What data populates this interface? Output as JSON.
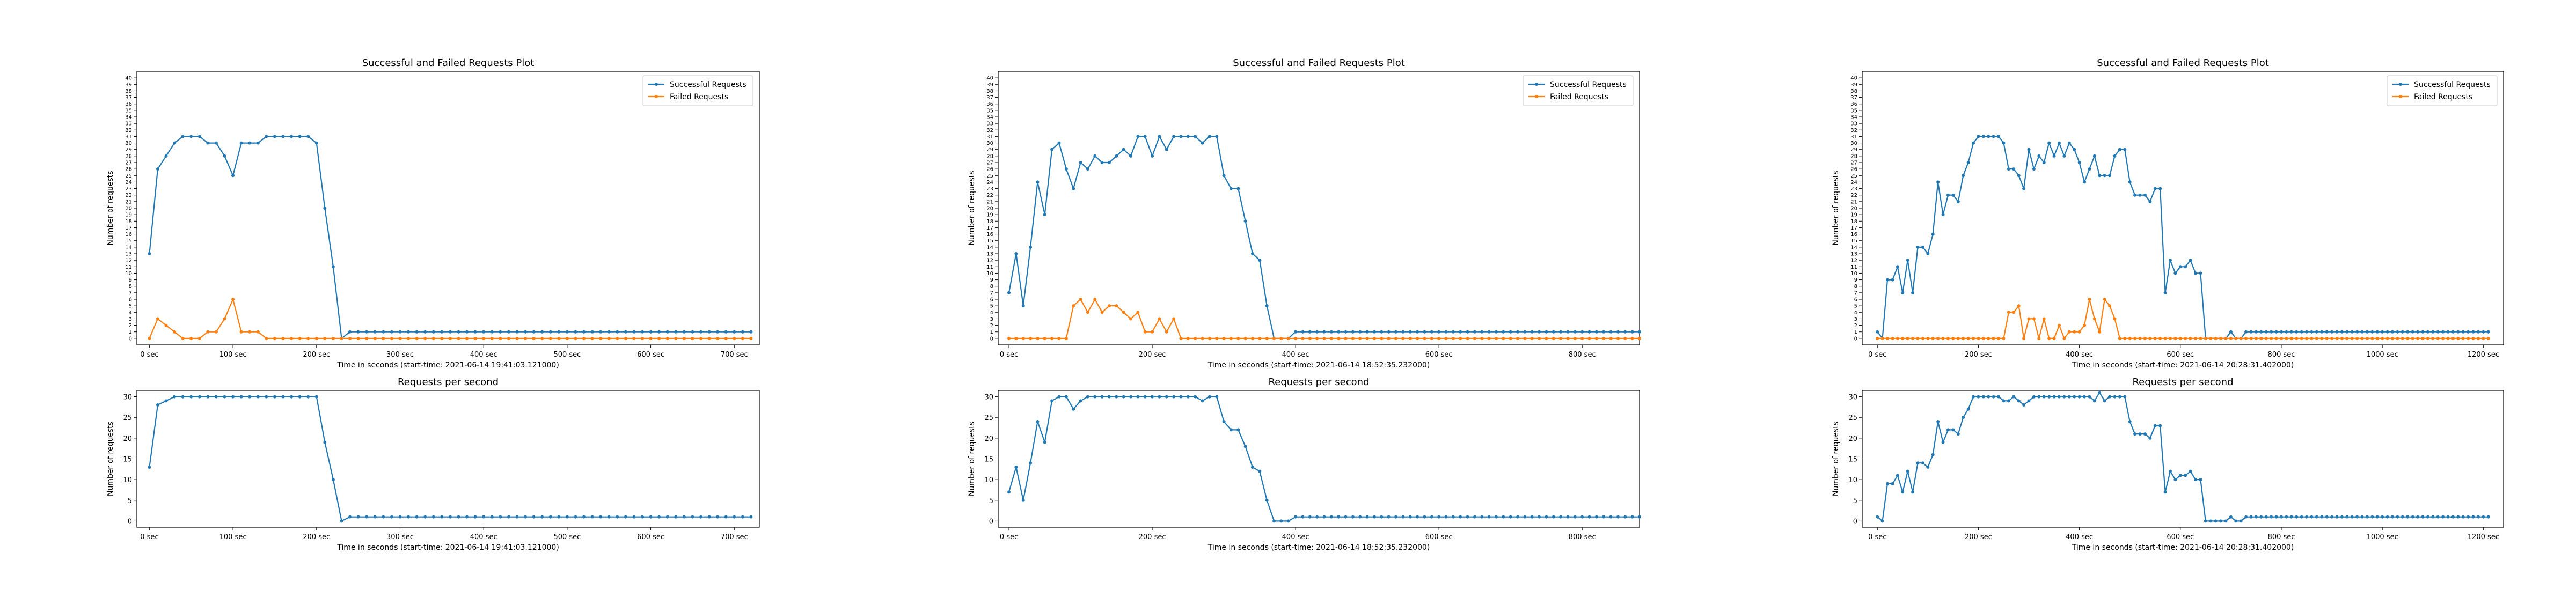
{
  "colors": {
    "success": "#1f77b4",
    "failed": "#ff7f0e",
    "frame": "#000000",
    "background": "#ffffff"
  },
  "chart_data": [
    {
      "type": "line",
      "title": "Successful and Failed Requests Plot",
      "xlabel": "Time in seconds (start-time: 2021-06-14 19:41:03.121000)",
      "ylabel": "Number of requests",
      "xlim": [
        -15,
        730
      ],
      "ylim": [
        -1,
        41
      ],
      "yticks": [
        0,
        1,
        2,
        3,
        4,
        5,
        6,
        7,
        8,
        9,
        10,
        11,
        12,
        13,
        14,
        15,
        16,
        17,
        18,
        19,
        20,
        21,
        22,
        23,
        24,
        25,
        26,
        27,
        28,
        29,
        30,
        31,
        32,
        33,
        34,
        35,
        36,
        37,
        38,
        39,
        40
      ],
      "xticks": [
        0,
        100,
        200,
        300,
        400,
        500,
        600,
        700
      ],
      "xtick_labels": [
        "0 sec",
        "100 sec",
        "200 sec",
        "300 sec",
        "400 sec",
        "500 sec",
        "600 sec",
        "700 sec"
      ],
      "legend": [
        "Successful Requests",
        "Failed Requests"
      ],
      "legend_position": "top-right",
      "series": [
        {
          "name": "Successful Requests",
          "x_step": 10,
          "values": [
            13,
            26,
            28,
            30,
            31,
            31,
            31,
            30,
            30,
            28,
            25,
            30,
            30,
            30,
            31,
            31,
            31,
            31,
            31,
            31,
            30,
            20,
            11,
            0,
            1,
            1,
            1,
            1,
            1,
            1,
            1,
            1,
            1,
            1,
            1,
            1,
            1,
            1,
            1,
            1,
            1,
            1,
            1,
            1,
            1,
            1,
            1,
            1,
            1,
            1,
            1,
            1,
            1,
            1,
            1,
            1,
            1,
            1,
            1,
            1,
            1,
            1,
            1,
            1,
            1,
            1,
            1,
            1,
            1,
            1,
            1,
            1,
            1
          ]
        },
        {
          "name": "Failed Requests",
          "x_step": 10,
          "values": [
            0,
            3,
            2,
            1,
            0,
            0,
            0,
            1,
            1,
            3,
            6,
            1,
            1,
            1,
            0,
            0,
            0,
            0,
            0,
            0,
            0,
            0,
            0,
            0,
            0,
            0,
            0,
            0,
            0,
            0,
            0,
            0,
            0,
            0,
            0,
            0,
            0,
            0,
            0,
            0,
            0,
            0,
            0,
            0,
            0,
            0,
            0,
            0,
            0,
            0,
            0,
            0,
            0,
            0,
            0,
            0,
            0,
            0,
            0,
            0,
            0,
            0,
            0,
            0,
            0,
            0,
            0,
            0,
            0,
            0,
            0,
            0,
            0
          ]
        }
      ]
    },
    {
      "type": "line",
      "title": "Requests per second",
      "xlabel": "Time in seconds (start-time: 2021-06-14 19:41:03.121000)",
      "ylabel": "Number of requests",
      "xlim": [
        -15,
        730
      ],
      "ylim": [
        -1.5,
        31.5
      ],
      "yticks": [
        0,
        5,
        10,
        15,
        20,
        25,
        30
      ],
      "xticks": [
        0,
        100,
        200,
        300,
        400,
        500,
        600,
        700
      ],
      "xtick_labels": [
        "0 sec",
        "100 sec",
        "200 sec",
        "300 sec",
        "400 sec",
        "500 sec",
        "600 sec",
        "700 sec"
      ],
      "series": [
        {
          "name": "Requests per second",
          "x_step": 10,
          "values": [
            13,
            28,
            29,
            30,
            30,
            30,
            30,
            30,
            30,
            30,
            30,
            30,
            30,
            30,
            30,
            30,
            30,
            30,
            30,
            30,
            30,
            19,
            10,
            0,
            1,
            1,
            1,
            1,
            1,
            1,
            1,
            1,
            1,
            1,
            1,
            1,
            1,
            1,
            1,
            1,
            1,
            1,
            1,
            1,
            1,
            1,
            1,
            1,
            1,
            1,
            1,
            1,
            1,
            1,
            1,
            1,
            1,
            1,
            1,
            1,
            1,
            1,
            1,
            1,
            1,
            1,
            1,
            1,
            1,
            1,
            1,
            1,
            1
          ]
        }
      ]
    },
    {
      "type": "line",
      "title": "Successful and Failed Requests Plot",
      "xlabel": "Time in seconds (start-time: 2021-06-14 18:52:35.232000)",
      "ylabel": "Number of requests",
      "xlim": [
        -15,
        880
      ],
      "ylim": [
        -1,
        41
      ],
      "yticks": [
        0,
        1,
        2,
        3,
        4,
        5,
        6,
        7,
        8,
        9,
        10,
        11,
        12,
        13,
        14,
        15,
        16,
        17,
        18,
        19,
        20,
        21,
        22,
        23,
        24,
        25,
        26,
        27,
        28,
        29,
        30,
        31,
        32,
        33,
        34,
        35,
        36,
        37,
        38,
        39,
        40
      ],
      "xticks": [
        0,
        200,
        400,
        600,
        800
      ],
      "xtick_labels": [
        "0 sec",
        "200 sec",
        "400 sec",
        "600 sec",
        "800 sec"
      ],
      "legend": [
        "Successful Requests",
        "Failed Requests"
      ],
      "legend_position": "top-right",
      "series": [
        {
          "name": "Successful Requests",
          "x_step": 10,
          "values": [
            7,
            13,
            5,
            14,
            24,
            19,
            29,
            30,
            26,
            23,
            27,
            26,
            28,
            27,
            27,
            28,
            29,
            28,
            31,
            31,
            28,
            31,
            29,
            31,
            31,
            31,
            31,
            30,
            31,
            31,
            25,
            23,
            23,
            18,
            13,
            12,
            5,
            0,
            0,
            0,
            1,
            1,
            1,
            1,
            1,
            1,
            1,
            1,
            1,
            1,
            1,
            1,
            1,
            1,
            1,
            1,
            1,
            1,
            1,
            1,
            1,
            1,
            1,
            1,
            1,
            1,
            1,
            1,
            1,
            1,
            1,
            1,
            1,
            1,
            1,
            1,
            1,
            1,
            1,
            1,
            1,
            1,
            1,
            1,
            1,
            1,
            1,
            1,
            1
          ]
        },
        {
          "name": "Failed Requests",
          "x_step": 10,
          "values": [
            0,
            0,
            0,
            0,
            0,
            0,
            0,
            0,
            0,
            5,
            6,
            4,
            6,
            4,
            5,
            5,
            4,
            3,
            4,
            1,
            1,
            3,
            1,
            3,
            0,
            0,
            0,
            0,
            0,
            0,
            0,
            0,
            0,
            0,
            0,
            0,
            0,
            0,
            0,
            0,
            0,
            0,
            0,
            0,
            0,
            0,
            0,
            0,
            0,
            0,
            0,
            0,
            0,
            0,
            0,
            0,
            0,
            0,
            0,
            0,
            0,
            0,
            0,
            0,
            0,
            0,
            0,
            0,
            0,
            0,
            0,
            0,
            0,
            0,
            0,
            0,
            0,
            0,
            0,
            0,
            0,
            0,
            0,
            0,
            0,
            0,
            0,
            0,
            0
          ]
        }
      ]
    },
    {
      "type": "line",
      "title": "Requests per second",
      "xlabel": "Time in seconds (start-time: 2021-06-14 18:52:35.232000)",
      "ylabel": "Number of requests",
      "xlim": [
        -15,
        880
      ],
      "ylim": [
        -1.5,
        31.5
      ],
      "yticks": [
        0,
        5,
        10,
        15,
        20,
        25,
        30
      ],
      "xticks": [
        0,
        200,
        400,
        600,
        800
      ],
      "xtick_labels": [
        "0 sec",
        "200 sec",
        "400 sec",
        "600 sec",
        "800 sec"
      ],
      "series": [
        {
          "name": "Requests per second",
          "x_step": 10,
          "values": [
            7,
            13,
            5,
            14,
            24,
            19,
            29,
            30,
            30,
            27,
            29,
            30,
            30,
            30,
            30,
            30,
            30,
            30,
            30,
            30,
            30,
            30,
            30,
            30,
            30,
            30,
            30,
            29,
            30,
            30,
            24,
            22,
            22,
            18,
            13,
            12,
            5,
            0,
            0,
            0,
            1,
            1,
            1,
            1,
            1,
            1,
            1,
            1,
            1,
            1,
            1,
            1,
            1,
            1,
            1,
            1,
            1,
            1,
            1,
            1,
            1,
            1,
            1,
            1,
            1,
            1,
            1,
            1,
            1,
            1,
            1,
            1,
            1,
            1,
            1,
            1,
            1,
            1,
            1,
            1,
            1,
            1,
            1,
            1,
            1,
            1,
            1,
            1,
            1
          ]
        }
      ]
    },
    {
      "type": "line",
      "title": "Successful and Failed Requests Plot",
      "xlabel": "Time in seconds (start-time: 2021-06-14 20:28:31.402000)",
      "ylabel": "Number of requests",
      "xlim": [
        -30,
        1240
      ],
      "ylim": [
        -1,
        41
      ],
      "yticks": [
        0,
        1,
        2,
        3,
        4,
        5,
        6,
        7,
        8,
        9,
        10,
        11,
        12,
        13,
        14,
        15,
        16,
        17,
        18,
        19,
        20,
        21,
        22,
        23,
        24,
        25,
        26,
        27,
        28,
        29,
        30,
        31,
        32,
        33,
        34,
        35,
        36,
        37,
        38,
        39,
        40
      ],
      "xticks": [
        0,
        200,
        400,
        600,
        800,
        1000,
        1200
      ],
      "xtick_labels": [
        "0 sec",
        "200 sec",
        "400 sec",
        "600 sec",
        "800 sec",
        "1000 sec",
        "1200 sec"
      ],
      "legend": [
        "Successful Requests",
        "Failed Requests"
      ],
      "legend_position": "top-right",
      "series": [
        {
          "name": "Successful Requests",
          "x_step": 10,
          "values": [
            1,
            0,
            9,
            9,
            11,
            7,
            12,
            7,
            14,
            14,
            13,
            16,
            24,
            19,
            22,
            22,
            21,
            25,
            27,
            30,
            31,
            31,
            31,
            31,
            31,
            30,
            26,
            26,
            25,
            23,
            29,
            26,
            28,
            27,
            30,
            28,
            30,
            28,
            30,
            29,
            27,
            24,
            26,
            28,
            25,
            25,
            25,
            28,
            29,
            29,
            24,
            22,
            22,
            22,
            21,
            23,
            23,
            7,
            12,
            10,
            11,
            11,
            12,
            10,
            10,
            0,
            0,
            0,
            0,
            0,
            1,
            0,
            0,
            1,
            1,
            1,
            1,
            1,
            1,
            1,
            1,
            1,
            1,
            1,
            1,
            1,
            1,
            1,
            1,
            1,
            1,
            1,
            1,
            1,
            1,
            1,
            1,
            1,
            1,
            1,
            1,
            1,
            1,
            1,
            1,
            1,
            1,
            1,
            1,
            1,
            1,
            1,
            1,
            1,
            1,
            1,
            1,
            1,
            1,
            1,
            1,
            1
          ]
        },
        {
          "name": "Failed Requests",
          "x_step": 10,
          "values": [
            0,
            0,
            0,
            0,
            0,
            0,
            0,
            0,
            0,
            0,
            0,
            0,
            0,
            0,
            0,
            0,
            0,
            0,
            0,
            0,
            0,
            0,
            0,
            0,
            0,
            0,
            4,
            4,
            5,
            0,
            3,
            3,
            0,
            3,
            0,
            0,
            2,
            0,
            1,
            1,
            1,
            2,
            6,
            3,
            1,
            6,
            5,
            3,
            0,
            0,
            0,
            0,
            0,
            0,
            0,
            0,
            0,
            0,
            0,
            0,
            0,
            0,
            0,
            0,
            0,
            0,
            0,
            0,
            0,
            0,
            0,
            0,
            0,
            0,
            0,
            0,
            0,
            0,
            0,
            0,
            0,
            0,
            0,
            0,
            0,
            0,
            0,
            0,
            0,
            0,
            0,
            0,
            0,
            0,
            0,
            0,
            0,
            0,
            0,
            0,
            0,
            0,
            0,
            0,
            0,
            0,
            0,
            0,
            0,
            0,
            0,
            0,
            0,
            0,
            0,
            0,
            0,
            0,
            0,
            0,
            0,
            0
          ]
        }
      ]
    },
    {
      "type": "line",
      "title": "Requests per second",
      "xlabel": "Time in seconds (start-time: 2021-06-14 20:28:31.402000)",
      "ylabel": "Number of requests",
      "xlim": [
        -30,
        1240
      ],
      "ylim": [
        -1.5,
        31.5
      ],
      "yticks": [
        0,
        5,
        10,
        15,
        20,
        25,
        30
      ],
      "xticks": [
        0,
        200,
        400,
        600,
        800,
        1000,
        1200
      ],
      "xtick_labels": [
        "0 sec",
        "200 sec",
        "400 sec",
        "600 sec",
        "800 sec",
        "1000 sec",
        "1200 sec"
      ],
      "series": [
        {
          "name": "Requests per second",
          "x_step": 10,
          "values": [
            1,
            0,
            9,
            9,
            11,
            7,
            12,
            7,
            14,
            14,
            13,
            16,
            24,
            19,
            22,
            22,
            21,
            25,
            27,
            30,
            30,
            30,
            30,
            30,
            30,
            29,
            29,
            30,
            29,
            28,
            29,
            30,
            30,
            30,
            30,
            30,
            30,
            30,
            30,
            30,
            30,
            30,
            30,
            29,
            31,
            29,
            30,
            30,
            30,
            30,
            24,
            21,
            21,
            21,
            20,
            23,
            23,
            7,
            12,
            10,
            11,
            11,
            12,
            10,
            10,
            0,
            0,
            0,
            0,
            0,
            1,
            0,
            0,
            1,
            1,
            1,
            1,
            1,
            1,
            1,
            1,
            1,
            1,
            1,
            1,
            1,
            1,
            1,
            1,
            1,
            1,
            1,
            1,
            1,
            1,
            1,
            1,
            1,
            1,
            1,
            1,
            1,
            1,
            1,
            1,
            1,
            1,
            1,
            1,
            1,
            1,
            1,
            1,
            1,
            1,
            1,
            1,
            1,
            1,
            1,
            1,
            1
          ]
        }
      ]
    }
  ]
}
